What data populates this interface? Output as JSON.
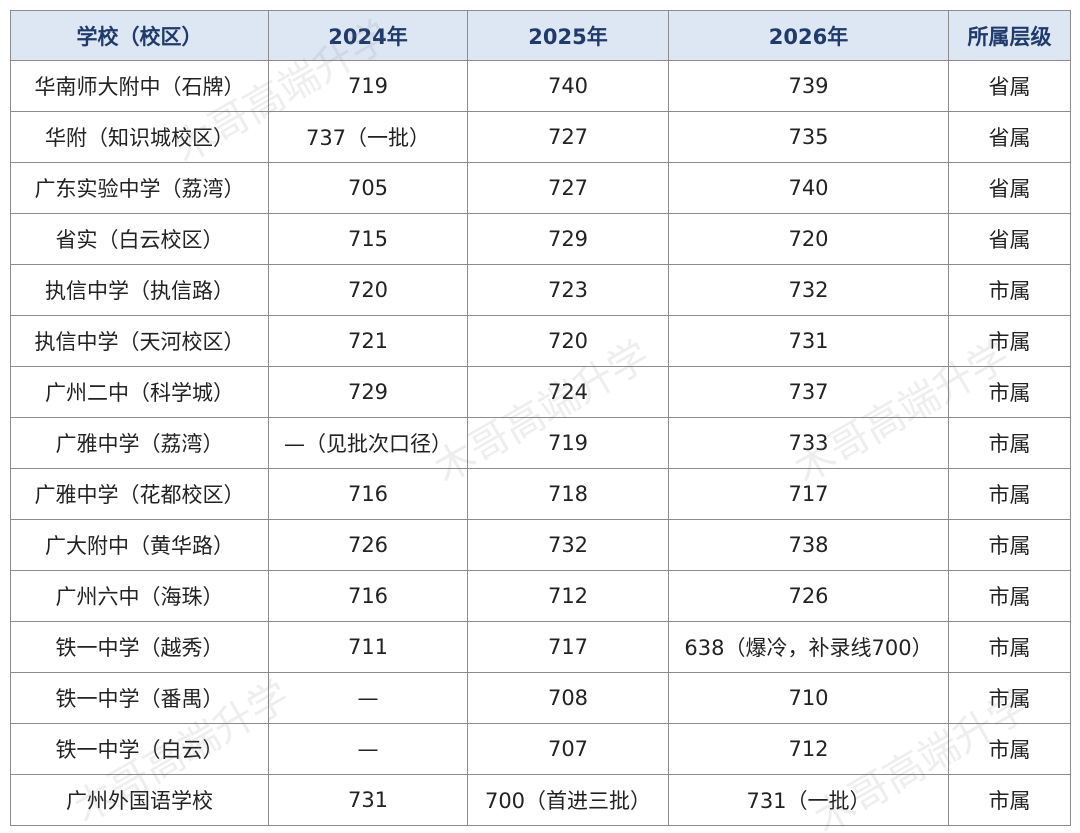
{
  "table": {
    "header": [
      "学校（校区）",
      "2024年",
      "2025年",
      "2026年",
      "所属层级"
    ],
    "rows": [
      [
        "华南师大附中（石牌）",
        "719",
        "740",
        "739",
        "省属"
      ],
      [
        "华附（知识城校区）",
        "737（一批）",
        "727",
        "735",
        "省属"
      ],
      [
        "广东实验中学（荔湾）",
        "705",
        "727",
        "740",
        "省属"
      ],
      [
        "省实（白云校区）",
        "715",
        "729",
        "720",
        "省属"
      ],
      [
        "执信中学（执信路）",
        "720",
        "723",
        "732",
        "市属"
      ],
      [
        "执信中学（天河校区）",
        "721",
        "720",
        "731",
        "市属"
      ],
      [
        "广州二中（科学城）",
        "729",
        "724",
        "737",
        "市属"
      ],
      [
        "广雅中学（荔湾）",
        "—（见批次口径）",
        "719",
        "733",
        "市属"
      ],
      [
        "广雅中学（花都校区）",
        "716",
        "718",
        "717",
        "市属"
      ],
      [
        "广大附中（黄华路）",
        "726",
        "732",
        "738",
        "市属"
      ],
      [
        "广州六中（海珠）",
        "716",
        "712",
        "726",
        "市属"
      ],
      [
        "铁一中学（越秀）",
        "711",
        "717",
        "638（爆冷，补录线700）",
        "市属"
      ],
      [
        "铁一中学（番禺）",
        "—",
        "708",
        "710",
        "市属"
      ],
      [
        "铁一中学（白云）",
        "—",
        "707",
        "712",
        "市属"
      ],
      [
        "广州外国语学校",
        "731",
        "700（首进三批）",
        "731（一批）",
        "市属"
      ]
    ]
  },
  "watermark": "木哥高端升学"
}
